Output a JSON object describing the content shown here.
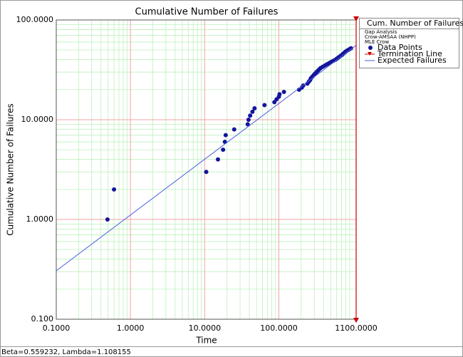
{
  "chart_data": {
    "type": "scatter",
    "title": "Cumulative Number of Failures",
    "x_label": "Time",
    "y_label": "Cumulative Number of Failures",
    "log_x": true,
    "log_y": true,
    "grid": true,
    "xlim": [
      0.1,
      1100
    ],
    "ylim": [
      0.1,
      100
    ],
    "xticks": [
      {
        "value": 0.1,
        "label": "0.1000"
      },
      {
        "value": 1,
        "label": "1.0000"
      },
      {
        "value": 10,
        "label": "10.0000"
      },
      {
        "value": 100,
        "label": "100.0000"
      },
      {
        "value": 1100,
        "label": "1100.0000"
      }
    ],
    "yticks": [
      {
        "value": 0.1,
        "label": "0.100"
      },
      {
        "value": 1,
        "label": "1.0000"
      },
      {
        "value": 10,
        "label": "10.0000"
      },
      {
        "value": 100,
        "label": "100.0000"
      }
    ],
    "legend_title": "Cum. Number of Failures",
    "legend_notes": [
      "Gap Analysis",
      "Crow-AMSAA (NHPP)",
      "MLE Crow"
    ],
    "legend_position": "right",
    "series": [
      {
        "name": "Data Points",
        "color": "#14149a",
        "x": [
          0.49,
          0.6,
          10.5,
          15.1,
          17.7,
          18.7,
          19.2,
          25,
          38,
          39,
          41,
          44,
          47,
          64,
          87,
          93,
          100,
          102,
          117,
          187,
          204,
          213,
          242,
          253,
          264,
          270,
          282,
          295,
          308,
          321,
          336,
          351,
          366,
          391,
          418,
          446,
          476,
          508,
          543,
          580,
          606,
          633,
          661,
          690,
          721,
          736,
          769,
          787,
          822,
          859,
          897,
          937
        ],
        "values": [
          1,
          2,
          3,
          4,
          5,
          6,
          7,
          8,
          9,
          10,
          11,
          12,
          13,
          14,
          15,
          16,
          17,
          18,
          19,
          20,
          21,
          22,
          23,
          24,
          25,
          26,
          27,
          28,
          29,
          30,
          31,
          32,
          33,
          34,
          35,
          36,
          37,
          38,
          39,
          40,
          41,
          42,
          43,
          44,
          45,
          46,
          47,
          48,
          49,
          50,
          51,
          52
        ]
      },
      {
        "name": "Expected Failures",
        "type": "line",
        "color": "#4a5de0",
        "x": [
          0.1,
          1100
        ],
        "values": [
          0.306,
          55.6
        ]
      }
    ],
    "termination_line": {
      "name": "Termination Line",
      "x": 1100,
      "color": "#cc0000"
    },
    "footer": "Beta=0.559232, Lambda=1.108155"
  }
}
